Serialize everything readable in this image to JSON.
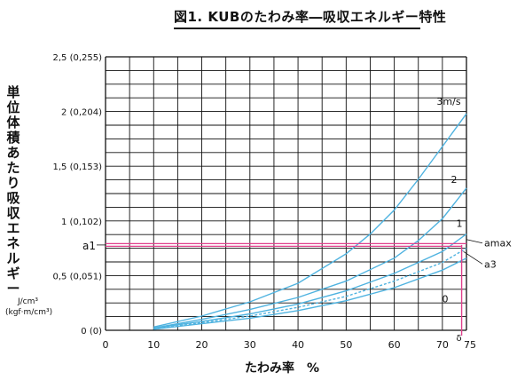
{
  "title": "図1. KUBのたわみ率―吸収エネルギー特性",
  "ylabel": "単位体積あたり吸収エネルギー",
  "y_unit_line1": "J/cm³",
  "y_unit_line2": "(kgf·m/cm³)",
  "xlabel": "たわみ率　%",
  "colors": {
    "curve": "#4fb3e0",
    "marker": "#e0408c",
    "grid": "#111111"
  },
  "chart_data": {
    "type": "line",
    "title": "図1. KUBのたわみ率―吸収エネルギー特性",
    "xlabel": "たわみ率　%",
    "ylabel": "単位体積あたり吸収エネルギー",
    "xlim": [
      0,
      75
    ],
    "ylim": [
      0,
      2.5
    ],
    "grid": true,
    "x_ticks": [
      0,
      10,
      20,
      30,
      40,
      50,
      60,
      70,
      75
    ],
    "x_tick_labels": [
      "0",
      "10",
      "20",
      "30",
      "40",
      "50",
      "60",
      "70",
      "75"
    ],
    "y_ticks": [
      0,
      0.5,
      1,
      1.5,
      2,
      2.5
    ],
    "y_tick_labels": [
      "0 (0)",
      "0,5 (0,051)",
      "1 (0,102)",
      "1,5 (0,153)",
      "2 (0,204)",
      "2,5 (0,255)"
    ],
    "series": [
      {
        "name": "3m/s",
        "dashed": false,
        "x": [
          10,
          20,
          30,
          40,
          50,
          55,
          60,
          65,
          70,
          75
        ],
        "y": [
          0.03,
          0.13,
          0.26,
          0.43,
          0.7,
          0.88,
          1.1,
          1.38,
          1.68,
          1.98
        ]
      },
      {
        "name": "2",
        "dashed": false,
        "x": [
          10,
          20,
          30,
          40,
          50,
          60,
          65,
          70,
          75
        ],
        "y": [
          0.02,
          0.1,
          0.19,
          0.3,
          0.45,
          0.66,
          0.82,
          1.02,
          1.3
        ]
      },
      {
        "name": "1",
        "dashed": false,
        "x": [
          10,
          20,
          30,
          40,
          50,
          60,
          70,
          75
        ],
        "y": [
          0.02,
          0.08,
          0.15,
          0.24,
          0.36,
          0.52,
          0.72,
          0.88
        ]
      },
      {
        "name": "",
        "dashed": true,
        "x": [
          10,
          20,
          30,
          40,
          50,
          60,
          70,
          75
        ],
        "y": [
          0.01,
          0.07,
          0.13,
          0.21,
          0.31,
          0.45,
          0.62,
          0.75
        ]
      },
      {
        "name": "0",
        "dashed": false,
        "x": [
          10,
          20,
          30,
          40,
          50,
          60,
          70,
          75
        ],
        "y": [
          0.01,
          0.06,
          0.11,
          0.18,
          0.27,
          0.39,
          0.55,
          0.66
        ]
      }
    ],
    "annotations": [
      {
        "label": "a1",
        "y": 0.78
      },
      {
        "label": "amax",
        "y": 0.83
      },
      {
        "label": "a3",
        "y": 0.72
      },
      {
        "label": "δ",
        "x": 74
      }
    ]
  }
}
